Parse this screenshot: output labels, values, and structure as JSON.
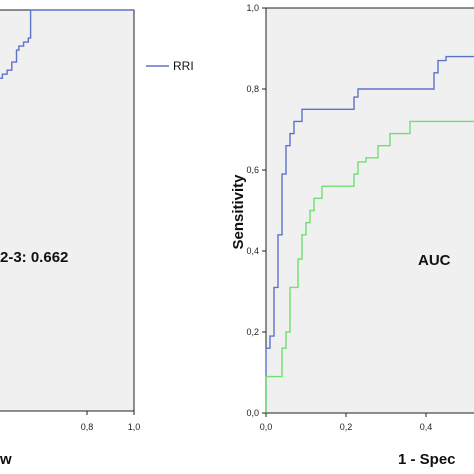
{
  "chart_data": [
    {
      "type": "line",
      "title": "",
      "xlabel": "w",
      "ylabel": "",
      "xlim": [
        0.4,
        1.0
      ],
      "ylim": [
        0.0,
        1.0
      ],
      "x_tick_labels": [
        "0,8",
        "1,0"
      ],
      "legend_position": "right",
      "grid": false,
      "annotation": "2-3: 0.662",
      "series": [
        {
          "name": "RRI",
          "color": "#5b73c9",
          "x": [
            0.4,
            0.44,
            0.44,
            0.46,
            0.46,
            0.48,
            0.48,
            0.5,
            0.5,
            0.51,
            0.51,
            0.53,
            0.53,
            0.55,
            0.55,
            0.56,
            0.56,
            1.0
          ],
          "y": [
            0.83,
            0.83,
            0.84,
            0.84,
            0.85,
            0.85,
            0.87,
            0.87,
            0.9,
            0.9,
            0.91,
            0.91,
            0.92,
            0.92,
            0.93,
            0.93,
            1.0,
            1.0
          ]
        }
      ]
    },
    {
      "type": "line",
      "title": "",
      "xlabel": "1 - Spec",
      "ylabel": "Sensitivity",
      "xlim": [
        0.0,
        0.55
      ],
      "ylim": [
        0.0,
        1.0
      ],
      "x_tick_labels": [
        "0,0",
        "0,2",
        "0,4"
      ],
      "y_tick_labels": [
        "0,0",
        "0,2",
        "0,4",
        "0,6",
        "0,8",
        "1,0"
      ],
      "grid": false,
      "annotation": "AUC",
      "series": [
        {
          "color": "#5b73c9",
          "x": [
            0.0,
            0.0,
            0.01,
            0.01,
            0.02,
            0.02,
            0.03,
            0.03,
            0.04,
            0.04,
            0.05,
            0.05,
            0.06,
            0.06,
            0.07,
            0.07,
            0.09,
            0.09,
            0.22,
            0.22,
            0.23,
            0.23,
            0.42,
            0.42,
            0.43,
            0.43,
            0.45,
            0.45,
            0.55
          ],
          "y": [
            0.0,
            0.16,
            0.16,
            0.19,
            0.19,
            0.31,
            0.31,
            0.44,
            0.44,
            0.59,
            0.59,
            0.66,
            0.66,
            0.69,
            0.69,
            0.72,
            0.72,
            0.75,
            0.75,
            0.78,
            0.78,
            0.8,
            0.8,
            0.84,
            0.84,
            0.87,
            0.87,
            0.88,
            0.88
          ]
        },
        {
          "color": "#6fe06f",
          "x": [
            0.0,
            0.0,
            0.04,
            0.04,
            0.05,
            0.05,
            0.06,
            0.06,
            0.08,
            0.08,
            0.09,
            0.09,
            0.1,
            0.1,
            0.11,
            0.11,
            0.12,
            0.12,
            0.14,
            0.14,
            0.22,
            0.22,
            0.23,
            0.23,
            0.25,
            0.25,
            0.28,
            0.28,
            0.31,
            0.31,
            0.36,
            0.36,
            0.45,
            0.45,
            0.55
          ],
          "y": [
            0.0,
            0.09,
            0.09,
            0.16,
            0.16,
            0.2,
            0.2,
            0.31,
            0.31,
            0.38,
            0.38,
            0.44,
            0.44,
            0.47,
            0.47,
            0.5,
            0.5,
            0.53,
            0.53,
            0.56,
            0.56,
            0.59,
            0.59,
            0.62,
            0.62,
            0.63,
            0.63,
            0.66,
            0.66,
            0.69,
            0.69,
            0.72,
            0.72,
            0.72,
            0.72
          ]
        }
      ]
    }
  ]
}
